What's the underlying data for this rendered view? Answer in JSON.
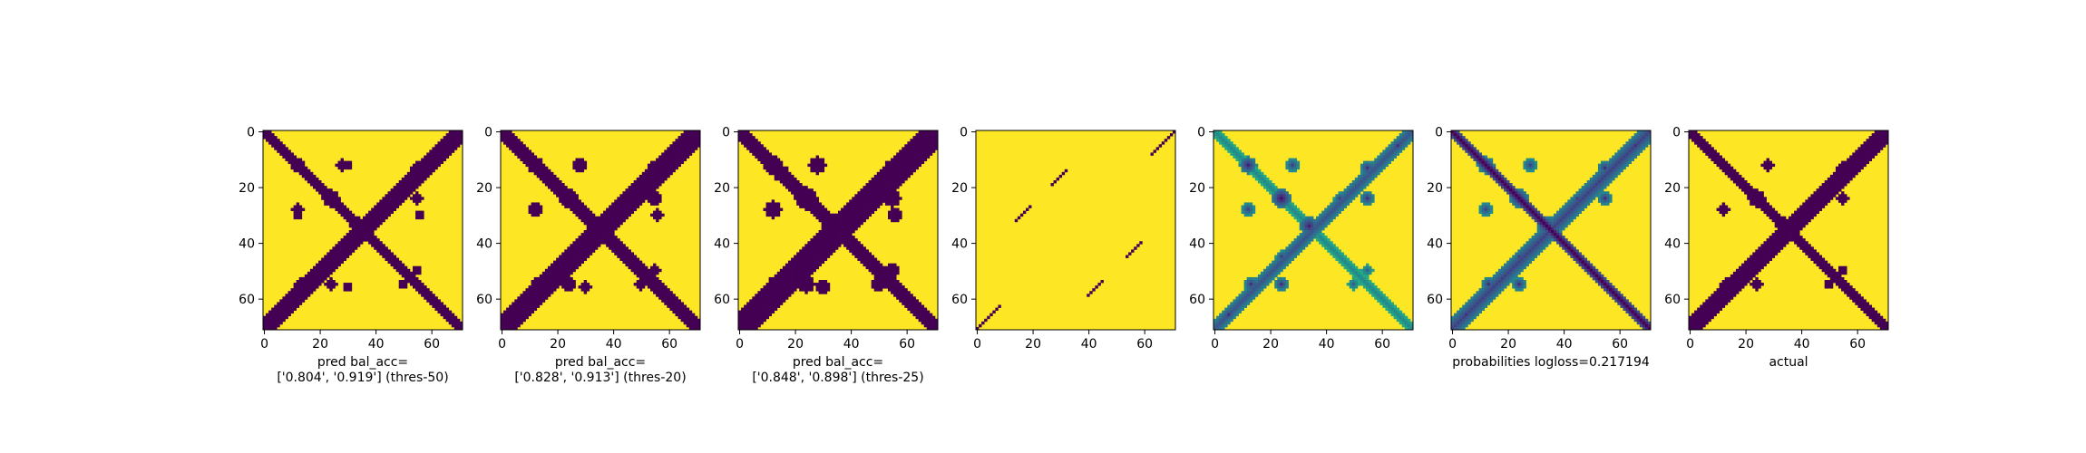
{
  "chart_data": [
    {
      "type": "heatmap",
      "kind": "binary",
      "cmap": "viridis",
      "xlabel": [
        "pred bal_acc=",
        "['0.804', '0.919'] (thres-50)"
      ],
      "x_ticks": [
        0,
        20,
        40,
        60
      ],
      "y_ticks": [
        0,
        20,
        40,
        60
      ],
      "matrix_size": 72,
      "value_range": [
        0,
        1
      ],
      "low_value_pattern": {
        "diagonals": [
          {
            "offset": 0,
            "width": 2.5
          },
          {
            "offset": -71,
            "width": 3.5
          }
        ],
        "blobs": [
          {
            "center": [
              12,
              12
            ],
            "radius": 2.5
          },
          {
            "center": [
              14,
              14
            ],
            "radius": 2
          },
          {
            "center": [
              24,
              24
            ],
            "radius": 3
          },
          {
            "center": [
              34,
              34
            ],
            "radius": 3
          },
          {
            "center": [
              12,
              28
            ],
            "radius": 2
          },
          {
            "center": [
              28,
              12
            ],
            "radius": 2
          },
          {
            "center": [
              30,
              12
            ],
            "radius": 1.5
          },
          {
            "center": [
              12,
              30
            ],
            "radius": 1.5
          },
          {
            "center": [
              55,
              13
            ],
            "radius": 2
          },
          {
            "center": [
              13,
              55
            ],
            "radius": 2
          },
          {
            "center": [
              55,
              24
            ],
            "radius": 2
          },
          {
            "center": [
              24,
              55
            ],
            "radius": 2
          },
          {
            "center": [
              45,
              24
            ],
            "radius": 1.5
          },
          {
            "center": [
              24,
              45
            ],
            "radius": 1.5
          },
          {
            "center": [
              56,
              30
            ],
            "radius": 1.5
          },
          {
            "center": [
              30,
              56
            ],
            "radius": 1.5
          },
          {
            "center": [
              5,
              66
            ],
            "radius": 2
          },
          {
            "center": [
              66,
              5
            ],
            "radius": 2
          },
          {
            "center": [
              50,
              55
            ],
            "radius": 1.5
          },
          {
            "center": [
              55,
              50
            ],
            "radius": 1.5
          }
        ]
      }
    },
    {
      "type": "heatmap",
      "kind": "binary",
      "cmap": "viridis",
      "xlabel": [
        "pred bal_acc=",
        "['0.828', '0.913'] (thres-20)"
      ],
      "x_ticks": [
        0,
        20,
        40,
        60
      ],
      "y_ticks": [
        0,
        20,
        40,
        60
      ],
      "matrix_size": 72,
      "value_range": [
        0,
        1
      ],
      "low_value_pattern": {
        "diagonals": [
          {
            "offset": 0,
            "width": 3
          },
          {
            "offset": -71,
            "width": 4
          }
        ],
        "blobs": [
          {
            "center": [
              12,
              12
            ],
            "radius": 3
          },
          {
            "center": [
              15,
              15
            ],
            "radius": 2.5
          },
          {
            "center": [
              24,
              24
            ],
            "radius": 3.5
          },
          {
            "center": [
              34,
              34
            ],
            "radius": 3.5
          },
          {
            "center": [
              12,
              28
            ],
            "radius": 2.5
          },
          {
            "center": [
              28,
              12
            ],
            "radius": 2.5
          },
          {
            "center": [
              55,
              13
            ],
            "radius": 2.5
          },
          {
            "center": [
              13,
              55
            ],
            "radius": 2.5
          },
          {
            "center": [
              55,
              24
            ],
            "radius": 2.5
          },
          {
            "center": [
              24,
              55
            ],
            "radius": 2.5
          },
          {
            "center": [
              45,
              24
            ],
            "radius": 2
          },
          {
            "center": [
              24,
              45
            ],
            "radius": 2
          },
          {
            "center": [
              56,
              30
            ],
            "radius": 2
          },
          {
            "center": [
              30,
              56
            ],
            "radius": 2
          },
          {
            "center": [
              5,
              66
            ],
            "radius": 2.5
          },
          {
            "center": [
              66,
              5
            ],
            "radius": 2.5
          },
          {
            "center": [
              50,
              55
            ],
            "radius": 2
          },
          {
            "center": [
              55,
              50
            ],
            "radius": 2
          }
        ]
      }
    },
    {
      "type": "heatmap",
      "kind": "binary",
      "cmap": "viridis",
      "xlabel": [
        "pred bal_acc=",
        "['0.848', '0.898'] (thres-25)"
      ],
      "x_ticks": [
        0,
        20,
        40,
        60
      ],
      "y_ticks": [
        0,
        20,
        40,
        60
      ],
      "matrix_size": 72,
      "value_range": [
        0,
        1
      ],
      "low_value_pattern": {
        "diagonals": [
          {
            "offset": 0,
            "width": 3.5
          },
          {
            "offset": -71,
            "width": 4.5
          }
        ],
        "blobs": [
          {
            "center": [
              12,
              12
            ],
            "radius": 3.5
          },
          {
            "center": [
              15,
              15
            ],
            "radius": 3
          },
          {
            "center": [
              24,
              24
            ],
            "radius": 4
          },
          {
            "center": [
              34,
              34
            ],
            "radius": 4
          },
          {
            "center": [
              12,
              28
            ],
            "radius": 3
          },
          {
            "center": [
              28,
              12
            ],
            "radius": 3
          },
          {
            "center": [
              55,
              13
            ],
            "radius": 3
          },
          {
            "center": [
              13,
              55
            ],
            "radius": 3
          },
          {
            "center": [
              55,
              24
            ],
            "radius": 3
          },
          {
            "center": [
              24,
              55
            ],
            "radius": 3
          },
          {
            "center": [
              45,
              24
            ],
            "radius": 2.5
          },
          {
            "center": [
              24,
              45
            ],
            "radius": 2.5
          },
          {
            "center": [
              56,
              30
            ],
            "radius": 2.5
          },
          {
            "center": [
              30,
              56
            ],
            "radius": 2.5
          },
          {
            "center": [
              5,
              66
            ],
            "radius": 3
          },
          {
            "center": [
              66,
              5
            ],
            "radius": 3
          },
          {
            "center": [
              50,
              55
            ],
            "radius": 2.5
          },
          {
            "center": [
              55,
              50
            ],
            "radius": 2.5
          },
          {
            "center": [
              62,
              63
            ],
            "radius": 2
          },
          {
            "center": [
              63,
              62
            ],
            "radius": 2
          }
        ]
      }
    },
    {
      "type": "heatmap",
      "kind": "binary",
      "cmap": "viridis",
      "xlabel": [],
      "x_ticks": [
        0,
        20,
        40,
        60
      ],
      "y_ticks": [
        0,
        20,
        40,
        60
      ],
      "matrix_size": 72,
      "value_range": [
        0,
        1
      ],
      "low_value_pattern": {
        "segments": [
          {
            "from": [
              0,
              71
            ],
            "to": [
              8,
              63
            ]
          },
          {
            "from": [
              63,
              8
            ],
            "to": [
              71,
              0
            ]
          },
          {
            "from": [
              14,
              32
            ],
            "to": [
              19,
              27
            ]
          },
          {
            "from": [
              27,
              19
            ],
            "to": [
              32,
              14
            ]
          },
          {
            "from": [
              40,
              59
            ],
            "to": [
              45,
              54
            ]
          },
          {
            "from": [
              54,
              45
            ],
            "to": [
              59,
              40
            ]
          }
        ]
      }
    },
    {
      "type": "heatmap",
      "kind": "continuous",
      "cmap": "viridis",
      "xlabel": [],
      "x_ticks": [
        0,
        20,
        40,
        60
      ],
      "y_ticks": [
        0,
        20,
        40,
        60
      ],
      "matrix_size": 72,
      "value_range": [
        0,
        1
      ],
      "low_value_pattern": {
        "diagonals": [
          {
            "offset": 0,
            "width": 2,
            "depth": 0.55
          },
          {
            "offset": -71,
            "width": 2.5,
            "depth": 0.75
          }
        ],
        "blobs": [
          {
            "center": [
              12,
              12
            ],
            "radius": 3,
            "depth": 0.9
          },
          {
            "center": [
              24,
              24
            ],
            "radius": 3.5,
            "depth": 0.95
          },
          {
            "center": [
              34,
              34
            ],
            "radius": 3.5,
            "depth": 0.9
          },
          {
            "center": [
              12,
              28
            ],
            "radius": 2.5,
            "depth": 0.8
          },
          {
            "center": [
              28,
              12
            ],
            "radius": 2.5,
            "depth": 0.8
          },
          {
            "center": [
              55,
              13
            ],
            "radius": 2.5,
            "depth": 0.85
          },
          {
            "center": [
              13,
              55
            ],
            "radius": 2.5,
            "depth": 0.85
          },
          {
            "center": [
              55,
              24
            ],
            "radius": 2.5,
            "depth": 0.85
          },
          {
            "center": [
              24,
              55
            ],
            "radius": 2.5,
            "depth": 0.85
          },
          {
            "center": [
              45,
              24
            ],
            "radius": 2,
            "depth": 0.8
          },
          {
            "center": [
              24,
              45
            ],
            "radius": 2,
            "depth": 0.8
          },
          {
            "center": [
              5,
              66
            ],
            "radius": 2.5,
            "depth": 0.85
          },
          {
            "center": [
              66,
              5
            ],
            "radius": 2.5,
            "depth": 0.85
          },
          {
            "center": [
              50,
              55
            ],
            "radius": 2,
            "depth": 0.7
          },
          {
            "center": [
              55,
              50
            ],
            "radius": 2,
            "depth": 0.7
          }
        ]
      }
    },
    {
      "type": "heatmap",
      "kind": "continuous",
      "cmap": "viridis",
      "xlabel": [
        "probabilities logloss=0.217194"
      ],
      "x_ticks": [
        0,
        20,
        40,
        60
      ],
      "y_ticks": [
        0,
        20,
        40,
        60
      ],
      "matrix_size": 72,
      "value_range": [
        0,
        1
      ],
      "low_value_pattern": {
        "diagonals": [
          {
            "offset": 0,
            "width": 2.5,
            "depth": 1.0
          },
          {
            "offset": -71,
            "width": 3,
            "depth": 0.8
          }
        ],
        "blobs": [
          {
            "center": [
              12,
              12
            ],
            "radius": 3,
            "depth": 0.9
          },
          {
            "center": [
              24,
              24
            ],
            "radius": 3.5,
            "depth": 0.9
          },
          {
            "center": [
              34,
              34
            ],
            "radius": 3.5,
            "depth": 0.9
          },
          {
            "center": [
              12,
              28
            ],
            "radius": 2.5,
            "depth": 0.8
          },
          {
            "center": [
              28,
              12
            ],
            "radius": 2.5,
            "depth": 0.8
          },
          {
            "center": [
              55,
              13
            ],
            "radius": 2.5,
            "depth": 0.85
          },
          {
            "center": [
              13,
              55
            ],
            "radius": 2.5,
            "depth": 0.85
          },
          {
            "center": [
              55,
              24
            ],
            "radius": 2.5,
            "depth": 0.85
          },
          {
            "center": [
              24,
              55
            ],
            "radius": 2.5,
            "depth": 0.85
          },
          {
            "center": [
              45,
              24
            ],
            "radius": 2,
            "depth": 0.8
          },
          {
            "center": [
              24,
              45
            ],
            "radius": 2,
            "depth": 0.8
          },
          {
            "center": [
              5,
              66
            ],
            "radius": 2.5,
            "depth": 0.85
          },
          {
            "center": [
              66,
              5
            ],
            "radius": 2.5,
            "depth": 0.85
          }
        ]
      }
    },
    {
      "type": "heatmap",
      "kind": "binary",
      "cmap": "viridis",
      "xlabel": [
        "actual"
      ],
      "x_ticks": [
        0,
        20,
        40,
        60
      ],
      "y_ticks": [
        0,
        20,
        40,
        60
      ],
      "matrix_size": 72,
      "value_range": [
        0,
        1
      ],
      "low_value_pattern": {
        "diagonals": [
          {
            "offset": 0,
            "width": 2.5
          },
          {
            "offset": -71,
            "width": 3
          }
        ],
        "blobs": [
          {
            "center": [
              12,
              12
            ],
            "radius": 2
          },
          {
            "center": [
              24,
              24
            ],
            "radius": 3
          },
          {
            "center": [
              34,
              34
            ],
            "radius": 3
          },
          {
            "center": [
              12,
              28
            ],
            "radius": 2
          },
          {
            "center": [
              28,
              12
            ],
            "radius": 2
          },
          {
            "center": [
              55,
              13
            ],
            "radius": 2
          },
          {
            "center": [
              13,
              55
            ],
            "radius": 2
          },
          {
            "center": [
              55,
              24
            ],
            "radius": 2
          },
          {
            "center": [
              24,
              55
            ],
            "radius": 2
          },
          {
            "center": [
              45,
              24
            ],
            "radius": 1.5
          },
          {
            "center": [
              24,
              45
            ],
            "radius": 1.5
          },
          {
            "center": [
              5,
              66
            ],
            "radius": 2
          },
          {
            "center": [
              66,
              5
            ],
            "radius": 2
          },
          {
            "center": [
              50,
              55
            ],
            "radius": 1.5
          },
          {
            "center": [
              55,
              50
            ],
            "radius": 1.5
          }
        ]
      }
    }
  ]
}
